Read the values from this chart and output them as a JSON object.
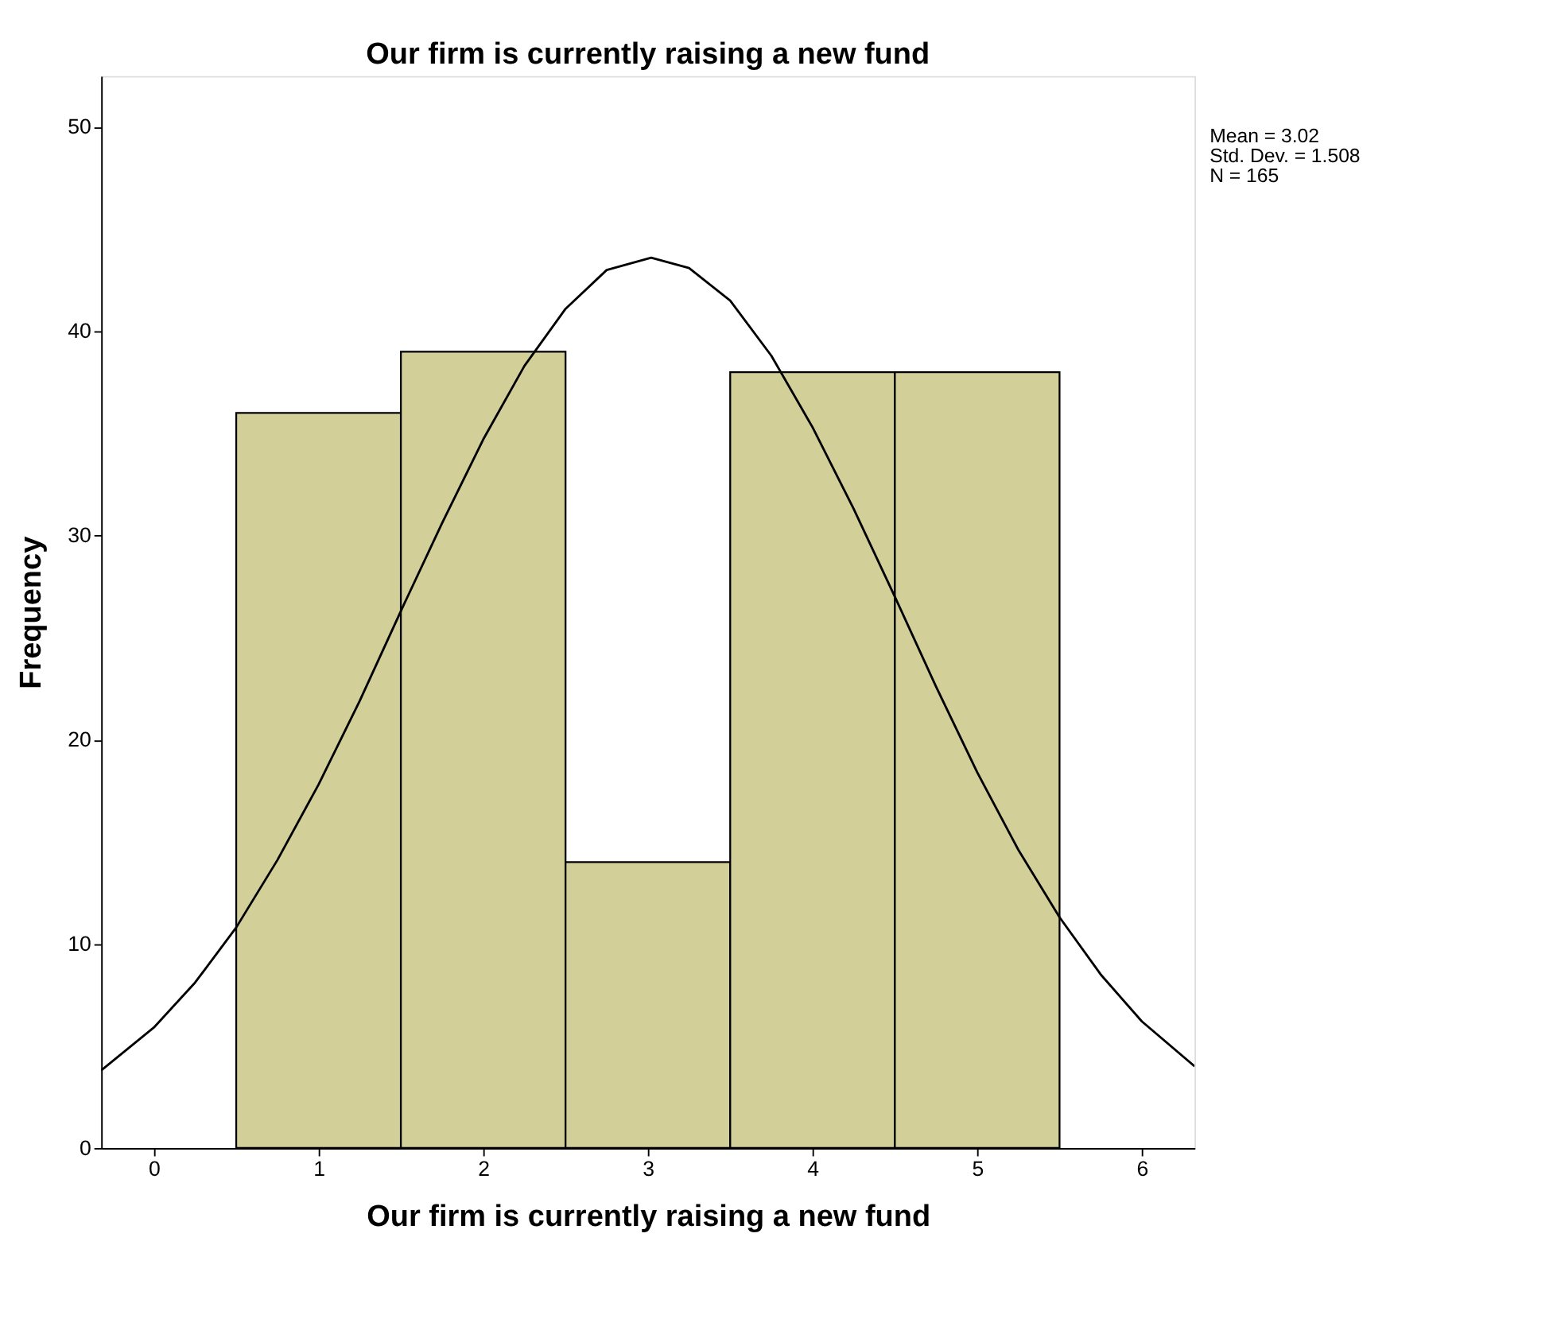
{
  "chart_data": {
    "type": "histogram",
    "title": "Our firm is currently raising a new fund",
    "xlabel": "Our firm is currently raising a new fund",
    "ylabel": "Frequency",
    "bins": [
      0.5,
      1.5,
      2.5,
      3.5,
      4.5,
      5.5
    ],
    "values": [
      36,
      39,
      14,
      38,
      38
    ],
    "color": "#d3cf99",
    "series": [
      {
        "type": "line",
        "color": "#000000",
        "x": [
          -0.32,
          0,
          0.25,
          0.5,
          0.75,
          1,
          1.25,
          1.5,
          1.75,
          2,
          2.25,
          2.5,
          2.75,
          3.02,
          3.25,
          3.5,
          3.75,
          4,
          4.25,
          4.5,
          4.75,
          5,
          5.25,
          5.5,
          5.75,
          6,
          6.32
        ],
        "values": [
          3.8,
          5.9,
          8.1,
          10.8,
          14.1,
          17.8,
          21.9,
          26.3,
          30.6,
          34.7,
          38.3,
          41.1,
          43.0,
          43.6,
          43.1,
          41.5,
          38.8,
          35.3,
          31.3,
          27.0,
          22.6,
          18.4,
          14.6,
          11.3,
          8.5,
          6.2,
          4.0
        ]
      }
    ],
    "xlim": [
      -0.32,
      6.32
    ],
    "xticks": [
      0,
      1,
      2,
      3,
      4,
      5,
      6
    ],
    "ylim": [
      0,
      52.5
    ],
    "yticks": [
      0,
      10,
      20,
      30,
      40,
      50
    ],
    "grid": false,
    "annotations": [
      "Mean = 3.02",
      "Std. Dev. = 1.508",
      "N = 165"
    ]
  }
}
